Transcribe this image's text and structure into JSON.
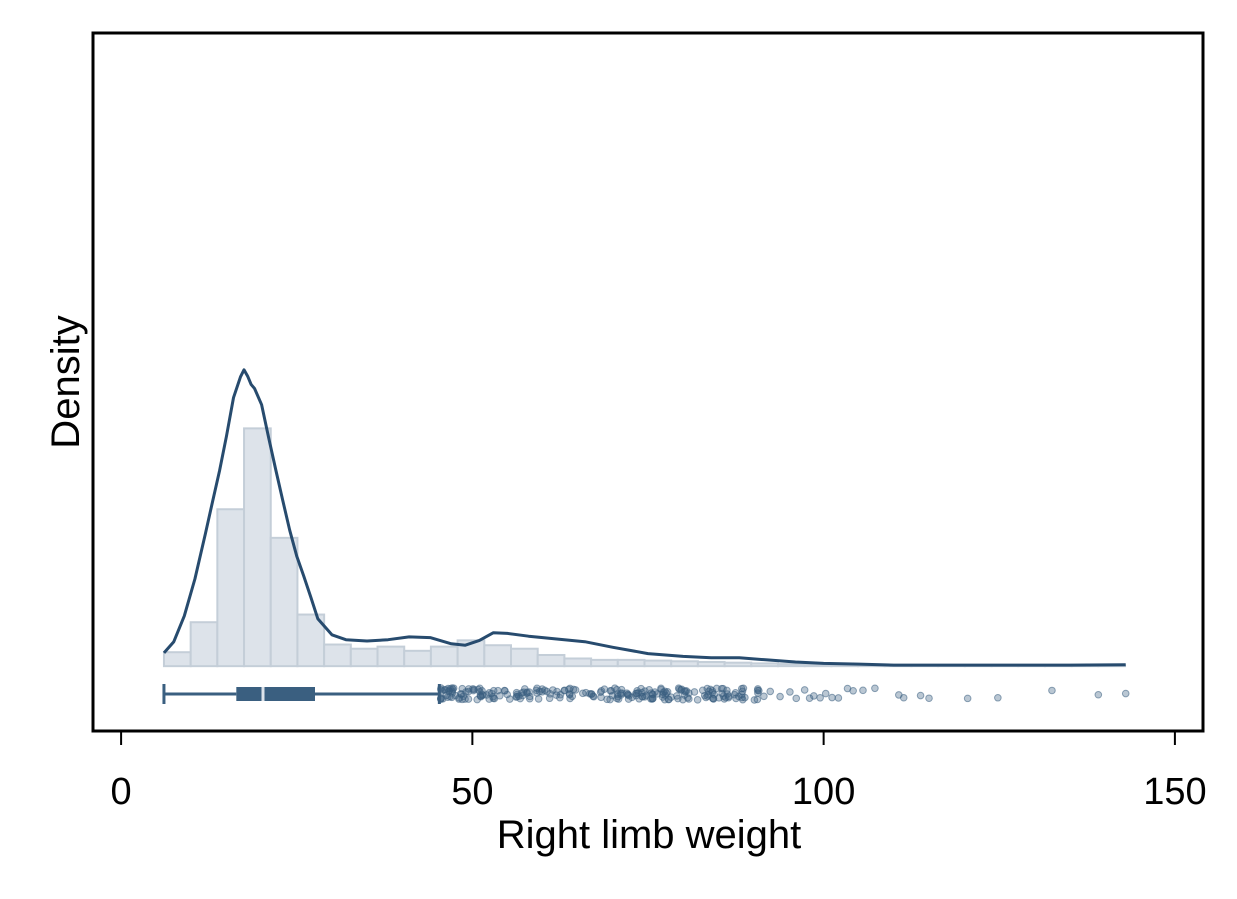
{
  "chart_data": {
    "type": "histogram",
    "xlabel": "Right limb weight",
    "ylabel": "Density",
    "xlim": [
      -4,
      154
    ],
    "ylim": [
      -0.0093,
      0.0908
    ],
    "x_ticks": [
      0,
      50,
      100,
      150
    ],
    "y_ticks": [],
    "histogram": {
      "bin_width": 3.8,
      "bin_start": 6.1,
      "densities": [
        0.002,
        0.0063,
        0.0225,
        0.0341,
        0.0184,
        0.0074,
        0.0031,
        0.0025,
        0.0028,
        0.0022,
        0.0028,
        0.0037,
        0.003,
        0.0025,
        0.0016,
        0.0011,
        0.0009,
        0.0009,
        0.0008,
        0.0007,
        0.0006,
        0.0005,
        0.0004,
        0.0003,
        0.00025,
        0.0002,
        0.00015,
        0.0001,
        0.0001,
        0.0001,
        0.0001,
        0.0001,
        0.0001,
        0.0001,
        0.0001,
        0.0001
      ],
      "fill": "#dde3ea",
      "stroke": "#c4ced8"
    },
    "kde": {
      "x": [
        6.1,
        7.5,
        9,
        10.5,
        12,
        13,
        14,
        15,
        16,
        17,
        17.5,
        18,
        18.5,
        19,
        20,
        21,
        22,
        23,
        24,
        25,
        26,
        27,
        28,
        30,
        32,
        35,
        38,
        41,
        44,
        47,
        49,
        51,
        53,
        55,
        58,
        62,
        66,
        70,
        75,
        80,
        84,
        88,
        92,
        96,
        100,
        105,
        110,
        115,
        120,
        125,
        130,
        135,
        143
      ],
      "y": [
        0.0019,
        0.0035,
        0.0072,
        0.0125,
        0.019,
        0.0235,
        0.028,
        0.033,
        0.0385,
        0.0415,
        0.0425,
        0.0416,
        0.0404,
        0.0398,
        0.0375,
        0.0328,
        0.0282,
        0.0238,
        0.0195,
        0.0158,
        0.0129,
        0.0099,
        0.0068,
        0.0045,
        0.0038,
        0.0036,
        0.0038,
        0.0042,
        0.0041,
        0.0032,
        0.003,
        0.0037,
        0.0048,
        0.0047,
        0.0043,
        0.0039,
        0.0035,
        0.0027,
        0.0018,
        0.0014,
        0.0012,
        0.0012,
        0.0009,
        0.0006,
        0.0004,
        0.0003,
        0.00015,
        0.00015,
        0.00015,
        0.00015,
        0.00015,
        0.00015,
        0.0002
      ],
      "color": "#274b6e"
    },
    "boxplot": {
      "min": 6.1,
      "q1": 16.4,
      "median": 20.2,
      "q3": 27.6,
      "whisker_high": 45.3,
      "color": "#3a5f80",
      "outliers_dense_range": [
        45.5,
        91
      ],
      "outliers_sparse": [
        91.5,
        92.4,
        93.8,
        95.2,
        96.1,
        97.3,
        98.0,
        98.6,
        99.5,
        100.3,
        101.2,
        102.1,
        103.4,
        104.2,
        105.6,
        107.3,
        110.7,
        111.4,
        113.8,
        115.0,
        120.5,
        124.8,
        132.5,
        139.1,
        143.0
      ]
    }
  }
}
